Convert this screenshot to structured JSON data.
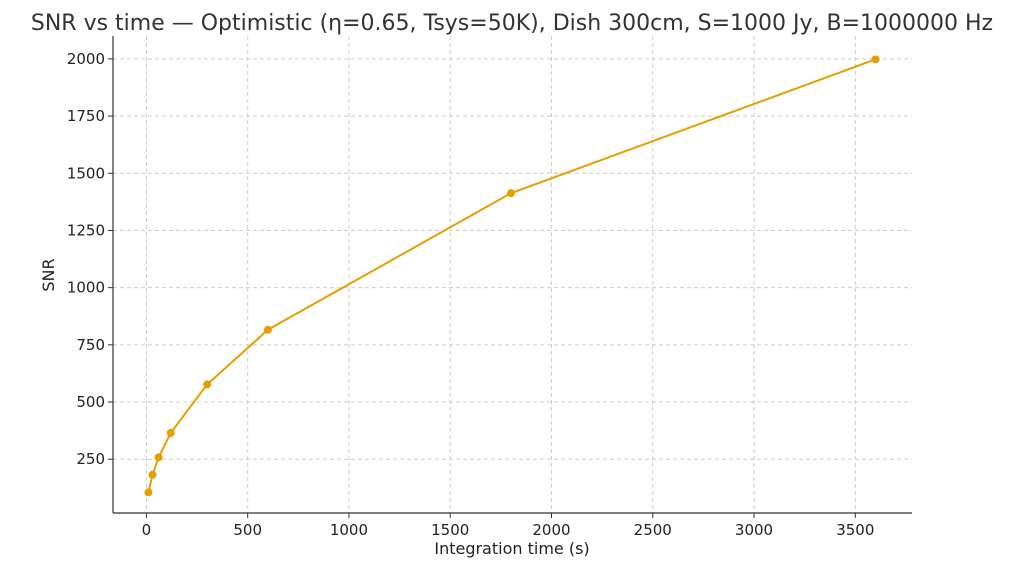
{
  "chart_data": {
    "type": "line",
    "title": "SNR vs time — Optimistic (η=0.65, Tsys=50K), Dish 300cm, S=1000 Jy, B=1000000 Hz",
    "xlabel": "Integration time (s)",
    "ylabel": "SNR",
    "xlim": [
      -165,
      3780
    ],
    "ylim": [
      15,
      2100
    ],
    "xticks": [
      0,
      500,
      1000,
      1500,
      2000,
      2500,
      3000,
      3500
    ],
    "yticks": [
      250,
      500,
      750,
      1000,
      1250,
      1500,
      1750,
      2000
    ],
    "grid": true,
    "series": [
      {
        "color": "#e69f00",
        "x": [
          10,
          30,
          60,
          120,
          300,
          600,
          1800,
          3600
        ],
        "y": [
          105,
          182,
          258,
          365,
          577,
          816,
          1413,
          1998
        ]
      }
    ]
  }
}
